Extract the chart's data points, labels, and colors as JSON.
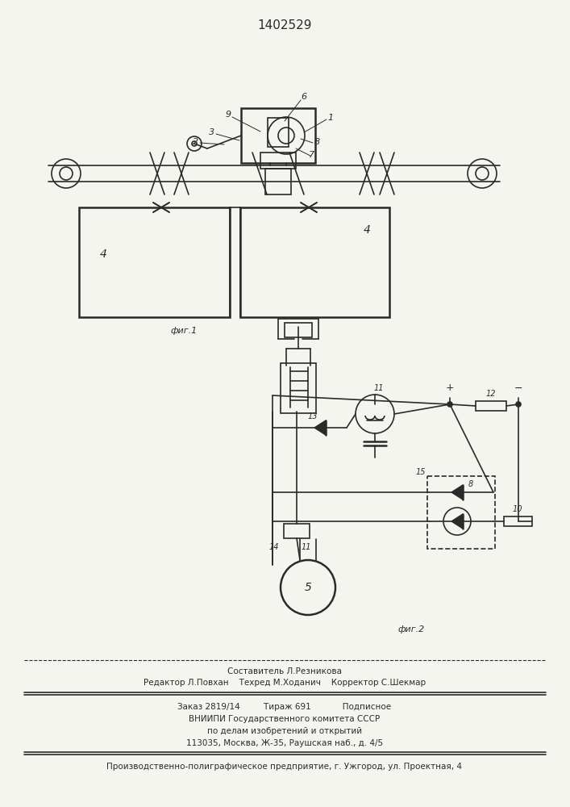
{
  "title": "1402529",
  "fig1_label": "фиг.1",
  "fig2_label": "фиг.2",
  "bg_color": "#f5f5f0",
  "line_color": "#2a2a2a"
}
